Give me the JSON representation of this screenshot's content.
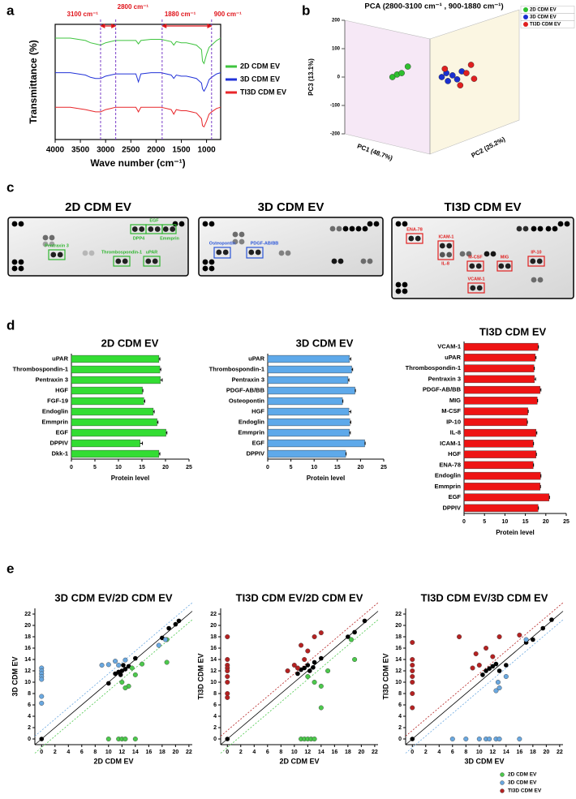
{
  "panel_labels": [
    "a",
    "b",
    "c",
    "d",
    "e"
  ],
  "chart_data": [
    {
      "type": "line",
      "xlabel": "Wave number (cm⁻¹)",
      "ylabel": "Transmittance (%)",
      "x": [
        4000,
        3700,
        3400,
        3300,
        3200,
        3100,
        3000,
        2900,
        2800,
        2600,
        2400,
        2350,
        2300,
        2100,
        1900,
        1700,
        1650,
        1600,
        1500,
        1400,
        1300,
        1200,
        1100,
        1080,
        1050,
        1000,
        950,
        900,
        800,
        720
      ],
      "xlim": [
        4000,
        720
      ],
      "xticks": [
        4000,
        3500,
        3000,
        2500,
        2000,
        1500,
        1000
      ],
      "ylim": [
        0,
        100
      ],
      "series": [
        {
          "name": "2D CDM EV",
          "color": "#3fc43f",
          "values": [
            88,
            88,
            86,
            84,
            83,
            82,
            84,
            85,
            86,
            86,
            86,
            83,
            86,
            87,
            87,
            85,
            82,
            85,
            84,
            84,
            83,
            82,
            78,
            68,
            66,
            74,
            80,
            82,
            86,
            88
          ]
        },
        {
          "name": "3D CDM EV",
          "color": "#2233d8",
          "values": [
            58,
            58,
            56,
            54,
            53,
            53,
            55,
            56,
            57,
            57,
            57,
            50,
            57,
            58,
            58,
            56,
            53,
            56,
            55,
            55,
            54,
            53,
            49,
            44,
            42,
            46,
            52,
            54,
            57,
            58
          ]
        },
        {
          "name": "TI3D CDM EV",
          "color": "#e8262a",
          "values": [
            28,
            28,
            26,
            25,
            24,
            24,
            26,
            27,
            28,
            28,
            28,
            24,
            28,
            28,
            28,
            26,
            22,
            26,
            25,
            25,
            24,
            23,
            18,
            12,
            11,
            16,
            22,
            24,
            27,
            28
          ]
        }
      ],
      "annotations": [
        {
          "text": "3100 cm⁻¹",
          "x": 3100
        },
        {
          "text": "2800 cm⁻¹",
          "x": 2800
        },
        {
          "text": "1880 cm⁻¹",
          "x": 1880
        },
        {
          "text": "900 cm⁻¹",
          "x": 900
        }
      ]
    },
    {
      "type": "scatter3d",
      "title": "PCA (2800-3100 cm⁻¹ , 900-1880 cm⁻¹)",
      "xlabel": "PC1 (48.7%)",
      "zlabel": "PC2 (25.2%)",
      "ylabel": "PC3 (13.1%)",
      "xlim": [
        0,
        100
      ],
      "ylim": [
        -200,
        200
      ],
      "yticks": [
        200,
        100,
        0,
        -100,
        -200
      ],
      "series": [
        {
          "name": "2D CDM EV",
          "color": "#2fbf2f",
          "x": [
            23,
            26,
            29,
            33
          ],
          "values": [
            0,
            9,
            14,
            37
          ]
        },
        {
          "name": "3D CDM EV",
          "color": "#1a2fd0",
          "x": [
            55,
            59,
            62,
            65,
            68,
            58
          ],
          "values": [
            0,
            -14,
            6,
            -8,
            20,
            14
          ]
        },
        {
          "name": "TI3D CDM EV",
          "color": "#e02020",
          "x": [
            57,
            71,
            74,
            76,
            67
          ],
          "values": [
            29,
            14,
            43,
            -6,
            -29
          ]
        }
      ]
    },
    {
      "type": "hbar",
      "title": "2D CDM EV",
      "xlabel": "Protein level",
      "color": "#33dd33",
      "xlim": [
        0,
        25
      ],
      "xticks": [
        0,
        5,
        10,
        15,
        20,
        25
      ],
      "categories": [
        "uPAR",
        "Thrombospondin-1",
        "Pentraxin 3",
        "HGF",
        "FGF-19",
        "Endoglin",
        "Emmprin",
        "EGF",
        "DPPIV",
        "Dkk-1"
      ],
      "values": [
        18.6,
        18.8,
        18.9,
        15.1,
        15.4,
        17.4,
        18.2,
        20.1,
        14.6,
        18.6
      ],
      "errors": [
        0.2,
        0.2,
        0.4,
        0.1,
        0.2,
        0.2,
        0.2,
        0.2,
        0.5,
        0.2
      ]
    },
    {
      "type": "hbar",
      "title": "3D CDM EV",
      "xlabel": "Protein level",
      "color": "#5ea9ea",
      "xlim": [
        0,
        25
      ],
      "xticks": [
        0,
        5,
        10,
        15,
        20,
        25
      ],
      "categories": [
        "uPAR",
        "Thrombospondin-1",
        "Pentraxin 3",
        "PDGF-AB/BB",
        "Osteopontin",
        "HGF",
        "Endoglin",
        "Emmprin",
        "EGF",
        "DPPIV"
      ],
      "values": [
        17.6,
        18.1,
        17.3,
        18.8,
        16.1,
        17.5,
        17.7,
        17.6,
        20.9,
        16.8
      ],
      "errors": [
        0.3,
        0.2,
        0.2,
        0.1,
        0.1,
        0.4,
        0.2,
        0.2,
        0.1,
        0.1
      ]
    },
    {
      "type": "hbar",
      "title": "TI3D CDM EV",
      "xlabel": "Protein level",
      "color": "#ee1414",
      "xlim": [
        0,
        25
      ],
      "xticks": [
        0,
        5,
        10,
        15,
        20,
        25
      ],
      "categories": [
        "VCAM-1",
        "uPAR",
        "Thrombospondin-1",
        "Pentraxin 3",
        "PDGF-AB/BB",
        "MIG",
        "M-CSF",
        "IP-10",
        "IL-8",
        "ICAM-1",
        "HGF",
        "ENA-78",
        "Endoglin",
        "Emmprin",
        "EGF",
        "DPPIV"
      ],
      "values": [
        18.1,
        17.4,
        17.1,
        17.2,
        18.6,
        17.9,
        15.6,
        15.4,
        17.6,
        16.9,
        17.6,
        16.9,
        18.7,
        18.6,
        20.8,
        18.1
      ],
      "errors": [
        0.1,
        0.2,
        0.1,
        0.3,
        0.2,
        0.1,
        0.1,
        0.1,
        0.2,
        0.1,
        0.1,
        0.1,
        0.1,
        0.1,
        0.1,
        0.1
      ]
    },
    {
      "type": "scatter",
      "title": "3D CDM EV/2D CDM EV",
      "xlabel": "2D CDM EV",
      "ylabel": "3D CDM EV",
      "xlim": [
        -1,
        22.5
      ],
      "ylim": [
        -1,
        23
      ],
      "xticks": [
        0,
        2,
        4,
        6,
        8,
        10,
        12,
        14,
        16,
        18,
        20,
        22
      ],
      "yticks": [
        0,
        2,
        4,
        6,
        8,
        10,
        12,
        14,
        16,
        18,
        20,
        22
      ],
      "series": [
        {
          "color": "#000000",
          "x": [
            0,
            10,
            11,
            11.5,
            11.8,
            12,
            12.2,
            12.5,
            13,
            14,
            18,
            19,
            20,
            20.5
          ],
          "values": [
            0,
            9.8,
            11.5,
            11.8,
            11.3,
            12,
            13,
            12.3,
            12.8,
            14.2,
            17.8,
            19.5,
            20.2,
            20.8
          ]
        },
        {
          "color": "#4cc94c",
          "x": [
            10,
            11.5,
            12,
            12.5,
            14,
            12,
            13,
            12.5,
            14,
            15,
            18.7,
            18.7,
            13.5
          ],
          "values": [
            0,
            0,
            0,
            0,
            0,
            10,
            9.3,
            9,
            11.3,
            13.2,
            13.5,
            17.5,
            12.5
          ]
        },
        {
          "color": "#6aa8e0",
          "x": [
            0,
            0,
            0,
            0,
            0,
            0,
            0,
            9,
            10,
            11,
            12.5,
            11.5,
            17.5,
            18.5
          ],
          "values": [
            12.5,
            12,
            11.5,
            11,
            10.5,
            7.5,
            6.3,
            13,
            13.1,
            13.7,
            13.9,
            13,
            16.5,
            17.5
          ]
        }
      ]
    },
    {
      "type": "scatter",
      "title": "TI3D CDM EV/2D CDM EV",
      "xlabel": "2D CDM EV",
      "ylabel": "TI3D CDM EV",
      "xlim": [
        -1,
        22.5
      ],
      "ylim": [
        -1,
        23
      ],
      "xticks": [
        0,
        2,
        4,
        6,
        8,
        10,
        12,
        14,
        16,
        18,
        20,
        22
      ],
      "yticks": [
        0,
        2,
        4,
        6,
        8,
        10,
        12,
        14,
        16,
        18,
        20,
        22
      ],
      "series": [
        {
          "color": "#000000",
          "x": [
            0,
            10.5,
            11,
            11.5,
            12,
            12.3,
            12.8,
            13,
            14,
            18,
            19,
            20.5
          ],
          "values": [
            0,
            11.5,
            12.2,
            12.5,
            13,
            12,
            12.6,
            13.5,
            14.2,
            18,
            18.8,
            20.8
          ]
        },
        {
          "color": "#4cc94c",
          "x": [
            11,
            11.5,
            12,
            12.5,
            13,
            14,
            12,
            13,
            15,
            19,
            18.5,
            14
          ],
          "values": [
            0,
            0,
            0,
            0,
            0,
            5.5,
            11,
            10,
            12,
            14,
            17.5,
            9.3
          ]
        },
        {
          "color": "#b52222",
          "x": [
            0,
            0,
            0,
            0,
            0,
            0,
            0,
            0,
            0,
            9,
            10,
            11,
            12,
            13,
            14,
            10.5,
            11.5
          ],
          "values": [
            18,
            14,
            13,
            12.5,
            12,
            11,
            10,
            8,
            7.3,
            12,
            13,
            16.5,
            15.5,
            18,
            18.7,
            12.5,
            14
          ]
        }
      ]
    },
    {
      "type": "scatter",
      "title": "TI3D CDM EV/3D CDM EV",
      "xlabel": "3D CDM EV",
      "ylabel": "TI3D CDM EV",
      "xlim": [
        -1,
        22.5
      ],
      "ylim": [
        -1,
        23
      ],
      "xticks": [
        0,
        2,
        4,
        6,
        8,
        10,
        12,
        14,
        16,
        18,
        20,
        22
      ],
      "yticks": [
        0,
        2,
        4,
        6,
        8,
        10,
        12,
        14,
        16,
        18,
        20,
        22
      ],
      "series": [
        {
          "color": "#000000",
          "x": [
            0,
            10.5,
            11,
            11.5,
            12,
            12.5,
            13,
            14,
            17,
            18,
            19.5,
            20.8
          ],
          "values": [
            0,
            11.3,
            12,
            12.4,
            12.8,
            13.2,
            12,
            13,
            17,
            17.5,
            19.5,
            21
          ]
        },
        {
          "color": "#6aa8e0",
          "x": [
            6,
            8,
            10,
            11,
            11.5,
            12.5,
            13,
            16,
            12.5,
            13,
            12.8,
            17,
            14
          ],
          "values": [
            0,
            0,
            0,
            0,
            0,
            0,
            0,
            0,
            8.5,
            9,
            10,
            17.5,
            11
          ]
        },
        {
          "color": "#b52222",
          "x": [
            0,
            0,
            0,
            0,
            0,
            0,
            0,
            0,
            7,
            9,
            10,
            11,
            12,
            13,
            16,
            9.5
          ],
          "values": [
            17,
            14,
            13,
            12,
            11,
            10,
            8,
            5.5,
            18,
            12.5,
            13,
            16,
            14.5,
            18,
            18.3,
            15
          ]
        }
      ]
    }
  ],
  "e_legend": [
    {
      "name": "2D CDM EV",
      "color": "#4cc94c"
    },
    {
      "name": "3D CDM EV",
      "color": "#6aa8e0"
    },
    {
      "name": "TI3D CDM EV",
      "color": "#b52222"
    }
  ],
  "panel_c": {
    "titles": [
      "2D CDM EV",
      "3D CDM EV",
      "TI3D CDM EV"
    ],
    "spots": [
      {
        "text": "EGF",
        "color": "#2fb52f"
      },
      {
        "text": "DPP4",
        "color": "#2fb52f"
      },
      {
        "text": "Emmprin",
        "color": "#2fb52f"
      },
      {
        "text": "Pentraxin 3",
        "color": "#2fb52f"
      },
      {
        "text": "Thrombospondin-1",
        "color": "#2fb52f"
      },
      {
        "text": "uPAR",
        "color": "#2fb52f"
      },
      {
        "text": "Osteopontin",
        "color": "#2a55d8"
      },
      {
        "text": "PDGF-AB/BB",
        "color": "#2a55d8"
      },
      {
        "text": "ENA-78",
        "color": "#e01e1e"
      },
      {
        "text": "ICAM-1",
        "color": "#e01e1e"
      },
      {
        "text": "IL-8",
        "color": "#e01e1e"
      },
      {
        "text": "M-CSF",
        "color": "#e01e1e"
      },
      {
        "text": "MIG",
        "color": "#e01e1e"
      },
      {
        "text": "IP-10",
        "color": "#e01e1e"
      },
      {
        "text": "VCAM-1",
        "color": "#e01e1e"
      }
    ]
  }
}
